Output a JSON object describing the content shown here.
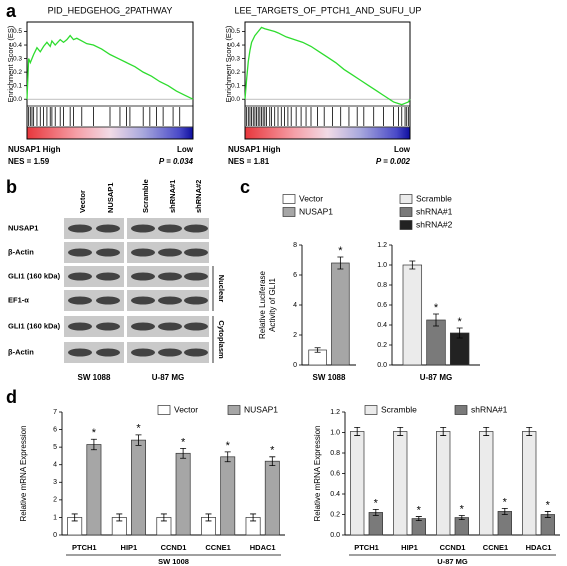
{
  "panel_labels": [
    "a",
    "b",
    "c",
    "d"
  ],
  "chart_data": [
    {
      "type": "gsea",
      "title": "PID_HEDGEHOG_2PATHWAY",
      "y_label": "Enrichment Score (ES)",
      "x": [
        0,
        1,
        2,
        4,
        6,
        8,
        10,
        12,
        14,
        15,
        17,
        20,
        22,
        24,
        26,
        28,
        30,
        33,
        36,
        40,
        45,
        50,
        55,
        60,
        65,
        70,
        75,
        80,
        85,
        90,
        95,
        100
      ],
      "series": [
        {
          "color": "#2edc2e",
          "values": [
            0,
            0.3,
            0.27,
            0.33,
            0.38,
            0.35,
            0.39,
            0.42,
            0.39,
            0.43,
            0.4,
            0.44,
            0.42,
            0.44,
            0.47,
            0.44,
            0.45,
            0.43,
            0.41,
            0.4,
            0.37,
            0.33,
            0.3,
            0.27,
            0.24,
            0.2,
            0.17,
            0.13,
            0.1,
            0.06,
            0.03,
            0
          ]
        }
      ],
      "xlim": [
        0,
        100
      ],
      "ylim": [
        -0.05,
        0.57
      ],
      "yticks": [
        {
          "value": 0,
          "label": "0.0"
        },
        0.1,
        0.2,
        0.3,
        0.4,
        0.5
      ],
      "hits": [
        1,
        2,
        3,
        4,
        6,
        8,
        10,
        12,
        14,
        15,
        17,
        20,
        22,
        26,
        28,
        33,
        40,
        50,
        56,
        60,
        62,
        70,
        74,
        78,
        82,
        88,
        92
      ],
      "annotations": {
        "high": "NUSAP1 High",
        "low": "Low",
        "nes": "NES = 1.59",
        "p": "P = 0.034"
      }
    },
    {
      "type": "gsea",
      "title": "LEE_TARGETS_OF_PTCH1_AND_SUFU_UP",
      "y_label": "Enrichment Score (ES)",
      "x": [
        0,
        1,
        2,
        3,
        4,
        6,
        8,
        10,
        12,
        15,
        18,
        20,
        25,
        30,
        35,
        40,
        45,
        50,
        55,
        60,
        65,
        70,
        75,
        80,
        85,
        90,
        95,
        97,
        99,
        100
      ],
      "series": [
        {
          "color": "#2edc2e",
          "values": [
            0,
            0.15,
            0.28,
            0.36,
            0.42,
            0.47,
            0.5,
            0.53,
            0.52,
            0.51,
            0.5,
            0.49,
            0.46,
            0.44,
            0.42,
            0.39,
            0.35,
            0.31,
            0.27,
            0.22,
            0.18,
            0.14,
            0.1,
            0.06,
            0.02,
            -0.02,
            -0.04,
            -0.03,
            -0.02,
            0
          ]
        }
      ],
      "xlim": [
        0,
        100
      ],
      "ylim": [
        -0.05,
        0.57
      ],
      "yticks": [
        {
          "value": 0,
          "label": "0.0"
        },
        0.1,
        0.2,
        0.3,
        0.4,
        0.5
      ],
      "hits": [
        1,
        2,
        3,
        4,
        5,
        6,
        7,
        8,
        9,
        10,
        11,
        12,
        13,
        15,
        16,
        18,
        20,
        22,
        24,
        26,
        28,
        31,
        34,
        37,
        40,
        44,
        48,
        53,
        58,
        63,
        68,
        72,
        78,
        84,
        90,
        93,
        95,
        97,
        98,
        99
      ],
      "annotations": {
        "high": "NUSAP1 High",
        "low": "Low",
        "nes": "NES = 1.81",
        "p": "P = 0.002"
      }
    },
    {
      "type": "bar",
      "y_label": [
        "Relative Luciferase",
        "Activity of GLI1"
      ],
      "categories": [
        "SW 1088"
      ],
      "series": [
        {
          "name": "Vector",
          "color": "#ffffff",
          "values": [
            1.0
          ],
          "errors": [
            0.15
          ]
        },
        {
          "name": "NUSAP1",
          "color": "#a6a6a6",
          "values": [
            6.8
          ],
          "errors": [
            0.4
          ],
          "annotation": "*"
        }
      ],
      "ylim": [
        0,
        8
      ],
      "yticks": [
        0,
        2,
        4,
        6,
        8
      ]
    },
    {
      "type": "bar",
      "categories": [
        "U-87 MG"
      ],
      "series": [
        {
          "name": "Scramble",
          "color": "#ebebeb",
          "values": [
            1.0
          ],
          "errors": [
            0.04
          ]
        },
        {
          "name": "shRNA#1",
          "color": "#7a7a7a",
          "values": [
            0.45
          ],
          "errors": [
            0.06
          ],
          "annotation": "*"
        },
        {
          "name": "shRNA#2",
          "color": "#222222",
          "values": [
            0.32
          ],
          "errors": [
            0.05
          ],
          "annotation": "*"
        }
      ],
      "ylim": [
        0,
        1.2
      ],
      "yticks": [
        {
          "value": 0,
          "label": "0.0"
        },
        0.2,
        0.4,
        0.6,
        0.8,
        {
          "value": 1,
          "label": "1.0"
        },
        1.2
      ]
    },
    {
      "type": "bar",
      "y_label": [
        "Relative mRNA Expression"
      ],
      "x_label": "SW 1008",
      "categories": [
        "PTCH1",
        "HIP1",
        "CCND1",
        "CCNE1",
        "HDAC1"
      ],
      "series": [
        {
          "name": "Vector",
          "color": "#ffffff",
          "values": [
            1.0,
            1.0,
            1.0,
            1.0,
            1.0
          ],
          "errors": [
            0.2,
            0.2,
            0.2,
            0.2,
            0.2
          ]
        },
        {
          "name": "NUSAP1",
          "color": "#a6a6a6",
          "values": [
            5.15,
            5.4,
            4.65,
            4.45,
            4.2
          ],
          "errors": [
            0.3,
            0.3,
            0.28,
            0.28,
            0.25
          ],
          "annotation": "*"
        }
      ],
      "ylim": [
        0,
        7
      ],
      "yticks": [
        0,
        1,
        2,
        3,
        4,
        5,
        6,
        7
      ]
    },
    {
      "type": "bar",
      "y_label": [
        "Relative mRNA Expression"
      ],
      "x_label": "U-87 MG",
      "categories": [
        "PTCH1",
        "HIP1",
        "CCND1",
        "CCNE1",
        "HDAC1"
      ],
      "series": [
        {
          "name": "Scramble",
          "color": "#ebebeb",
          "values": [
            1.01,
            1.01,
            1.01,
            1.01,
            1.01
          ],
          "errors": [
            0.04,
            0.04,
            0.04,
            0.04,
            0.04
          ]
        },
        {
          "name": "shRNA#1",
          "color": "#7a7a7a",
          "values": [
            0.22,
            0.16,
            0.17,
            0.23,
            0.2
          ],
          "errors": [
            0.03,
            0.02,
            0.02,
            0.03,
            0.03
          ],
          "annotation": "*"
        }
      ],
      "ylim": [
        0,
        1.2
      ],
      "yticks": [
        {
          "value": 0,
          "label": "0.0"
        },
        0.2,
        0.4,
        0.6,
        0.8,
        {
          "value": 1,
          "label": "1.0"
        },
        1.2
      ]
    }
  ],
  "blot": {
    "lanes": [
      "Vector",
      "NUSAP1",
      "Scramble",
      "shRNA#1",
      "shRNA#2"
    ],
    "rows": [
      "NUSAP1",
      "β-Actin",
      "GLI1 (160 kDa)",
      "EF1-α",
      "GLI1 (160 kDa)",
      "β-Actin"
    ],
    "fractions": [
      "Nuclear",
      "Cytoplasm"
    ],
    "cell_lines": [
      "SW 1088",
      "U-87 MG"
    ]
  }
}
